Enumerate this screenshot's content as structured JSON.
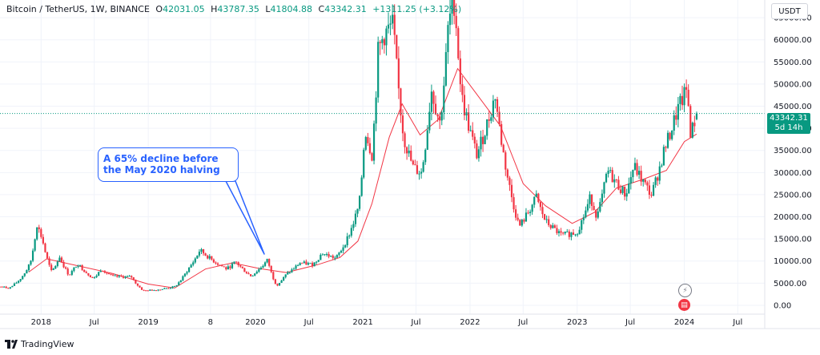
{
  "header": {
    "symbol": "Bitcoin / TetherUS, 1W, BINANCE",
    "open_label": "O",
    "open": "42031.05",
    "high_label": "H",
    "high": "43787.35",
    "low_label": "L",
    "low": "41804.88",
    "close_label": "C",
    "close": "43342.31",
    "change": "+1311.25 (+3.12%)"
  },
  "currency": "USDT",
  "price_tag": {
    "price": "43342.31",
    "countdown": "5d 14h"
  },
  "annotation": {
    "text": "A 65% decline before the May 2020 halving"
  },
  "footer": {
    "brand": "TradingView"
  },
  "icons": {
    "event_1": "lightning-bolt-icon",
    "event_2": "us-flag-icon"
  },
  "colors": {
    "up": "#089981",
    "down": "#f23645",
    "ma": "#f23645",
    "annotation": "#2962ff",
    "grid": "#f0f3fa"
  },
  "chart_data": {
    "type": "candlestick",
    "title": "Bitcoin / TetherUS, 1W, BINANCE",
    "ylim": [
      -2000,
      69000
    ],
    "y_ticks": [
      0,
      5000,
      10000,
      15000,
      20000,
      25000,
      30000,
      35000,
      40000,
      45000,
      50000,
      55000,
      60000,
      65000
    ],
    "y_tick_labels": [
      "0.00",
      "5000.00",
      "10000.00",
      "15000.00",
      "20000.00",
      "25000.00",
      "30000.00",
      "35000.00",
      "40000.00",
      "45000.00",
      "50000.00",
      "55000.00",
      "60000.00",
      "65000.00"
    ],
    "x_ticks": [
      "2018-01",
      "2018-07",
      "2019-01",
      "2019-08",
      "2020-01",
      "2020-07",
      "2021-01",
      "2021-07",
      "2022-01",
      "2022-07",
      "2023-01",
      "2023-07",
      "2024-01",
      "2024-07"
    ],
    "x_tick_labels": [
      "2018",
      "Jul",
      "2019",
      "8",
      "2020",
      "Jul",
      "2021",
      "Jul",
      "2022",
      "Jul",
      "2023",
      "Jul",
      "2024",
      "Jul"
    ],
    "x_range": [
      "2017-08-14",
      "2024-10-01"
    ],
    "last_price": 43342.31,
    "price_path": [
      [
        "2017-08-14",
        4200
      ],
      [
        "2017-09-15",
        3900
      ],
      [
        "2017-10-20",
        5800
      ],
      [
        "2017-11-25",
        9500
      ],
      [
        "2017-12-17",
        18500
      ],
      [
        "2018-01-05",
        15000
      ],
      [
        "2018-02-06",
        7500
      ],
      [
        "2018-03-05",
        11000
      ],
      [
        "2018-04-06",
        6800
      ],
      [
        "2018-05-05",
        9500
      ],
      [
        "2018-06-29",
        6000
      ],
      [
        "2018-07-25",
        8300
      ],
      [
        "2018-09-01",
        6500
      ],
      [
        "2018-11-05",
        6400
      ],
      [
        "2018-12-15",
        3300
      ],
      [
        "2019-02-01",
        3500
      ],
      [
        "2019-04-01",
        4200
      ],
      [
        "2019-05-15",
        8000
      ],
      [
        "2019-06-26",
        12500
      ],
      [
        "2019-08-01",
        10500
      ],
      [
        "2019-09-25",
        8200
      ],
      [
        "2019-10-26",
        9800
      ],
      [
        "2019-12-17",
        6600
      ],
      [
        "2020-02-12",
        10300
      ],
      [
        "2020-03-13",
        4500
      ],
      [
        "2020-04-15",
        7000
      ],
      [
        "2020-06-01",
        9600
      ],
      [
        "2020-07-15",
        9200
      ],
      [
        "2020-08-15",
        11800
      ],
      [
        "2020-10-01",
        10600
      ],
      [
        "2020-11-15",
        16000
      ],
      [
        "2020-12-20",
        23000
      ],
      [
        "2021-01-08",
        40000
      ],
      [
        "2021-02-01",
        34000
      ],
      [
        "2021-02-21",
        57000
      ],
      [
        "2021-03-13",
        61000
      ],
      [
        "2021-04-14",
        63500
      ],
      [
        "2021-05-20",
        38000
      ],
      [
        "2021-06-22",
        31000
      ],
      [
        "2021-07-20",
        30000
      ],
      [
        "2021-08-22",
        49000
      ],
      [
        "2021-09-21",
        41000
      ],
      [
        "2021-10-20",
        64000
      ],
      [
        "2021-11-10",
        68800
      ],
      [
        "2021-12-04",
        47000
      ],
      [
        "2022-01-24",
        34000
      ],
      [
        "2022-03-28",
        47500
      ],
      [
        "2022-05-12",
        28000
      ],
      [
        "2022-06-18",
        17800
      ],
      [
        "2022-08-15",
        24500
      ],
      [
        "2022-09-15",
        19000
      ],
      [
        "2022-11-09",
        15800
      ],
      [
        "2022-12-31",
        16500
      ],
      [
        "2023-02-15",
        24500
      ],
      [
        "2023-03-10",
        20000
      ],
      [
        "2023-04-14",
        30500
      ],
      [
        "2023-06-15",
        25000
      ],
      [
        "2023-07-13",
        31500
      ],
      [
        "2023-09-11",
        25000
      ],
      [
        "2023-10-24",
        35000
      ],
      [
        "2023-12-08",
        44000
      ],
      [
        "2024-01-11",
        48900
      ],
      [
        "2024-01-23",
        38500
      ],
      [
        "2024-02-12",
        43342.31
      ]
    ],
    "moving_average": {
      "name": "",
      "points": [
        [
          "2017-11-20",
          7500
        ],
        [
          "2018-01-20",
          10500
        ],
        [
          "2018-05-01",
          9000
        ],
        [
          "2018-09-01",
          7200
        ],
        [
          "2019-01-01",
          4800
        ],
        [
          "2019-04-01",
          3900
        ],
        [
          "2019-07-15",
          8200
        ],
        [
          "2019-10-15",
          9600
        ],
        [
          "2020-01-15",
          8300
        ],
        [
          "2020-04-15",
          7400
        ],
        [
          "2020-08-01",
          9200
        ],
        [
          "2020-10-15",
          10800
        ],
        [
          "2020-12-15",
          14500
        ],
        [
          "2021-02-01",
          23000
        ],
        [
          "2021-04-01",
          38000
        ],
        [
          "2021-05-15",
          45500
        ],
        [
          "2021-07-15",
          38500
        ],
        [
          "2021-09-15",
          42000
        ],
        [
          "2021-11-20",
          53500
        ],
        [
          "2022-01-15",
          48500
        ],
        [
          "2022-04-15",
          40500
        ],
        [
          "2022-07-01",
          27500
        ],
        [
          "2022-09-15",
          22500
        ],
        [
          "2022-12-15",
          18500
        ],
        [
          "2023-03-01",
          21000
        ],
        [
          "2023-05-15",
          26500
        ],
        [
          "2023-08-15",
          28500
        ],
        [
          "2023-11-01",
          30500
        ],
        [
          "2024-01-01",
          37000
        ],
        [
          "2024-02-12",
          38700
        ]
      ]
    }
  }
}
